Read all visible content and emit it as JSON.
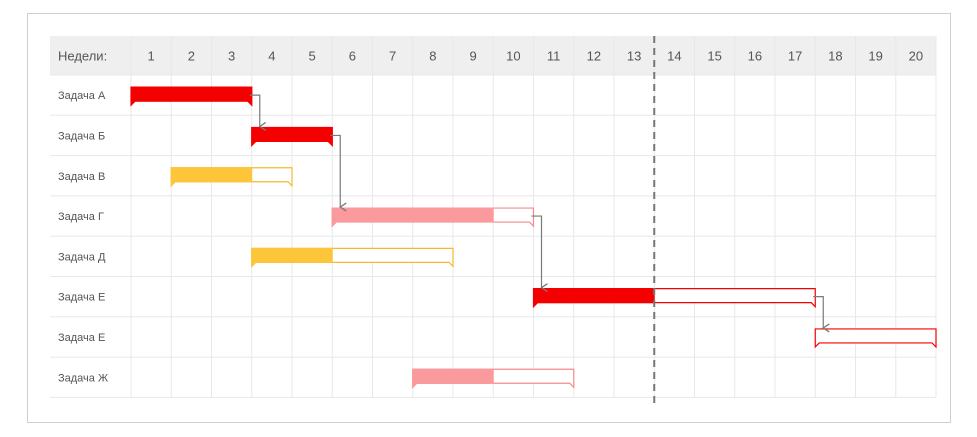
{
  "chart_data": {
    "type": "gantt",
    "header_label": "Недели:",
    "weeks": [
      "1",
      "2",
      "3",
      "4",
      "5",
      "6",
      "7",
      "8",
      "9",
      "10",
      "11",
      "12",
      "13",
      "14",
      "15",
      "16",
      "17",
      "18",
      "19",
      "20"
    ],
    "current_week_marker": 13,
    "colors": {
      "done_red": "#f50000",
      "done_yellow": "#fcc53a",
      "done_pink": "#fb9a9c",
      "outline_red": "#f50000",
      "outline_yellow": "#f7b733",
      "outline_pink": "#f28b8f",
      "arrow": "#7a7a7a",
      "header_bg": "#efefef",
      "grid": "#e8e8e8",
      "marker": "#777777"
    },
    "tasks": [
      {
        "id": "A",
        "label": "Задача А",
        "start": 1,
        "end": 3,
        "done_until": 3,
        "color": "red"
      },
      {
        "id": "B",
        "label": "Задача Б",
        "start": 4,
        "end": 5,
        "done_until": 5,
        "color": "red"
      },
      {
        "id": "V",
        "label": "Задача В",
        "start": 2,
        "end": 4,
        "done_until": 3,
        "color": "yellow"
      },
      {
        "id": "G",
        "label": "Задача Г",
        "start": 6,
        "end": 10,
        "done_until": 9,
        "color": "pink"
      },
      {
        "id": "D",
        "label": "Задача Д",
        "start": 4,
        "end": 8,
        "done_until": 5,
        "color": "yellow"
      },
      {
        "id": "E1",
        "label": "Задача Е",
        "start": 11,
        "end": 17,
        "done_until": 13,
        "color": "red"
      },
      {
        "id": "E2",
        "label": "Задача Е",
        "start": 18,
        "end": 20,
        "done_until": 17,
        "color": "red"
      },
      {
        "id": "ZH",
        "label": "Задача Ж",
        "start": 8,
        "end": 11,
        "done_until": 9,
        "color": "pink"
      }
    ],
    "dependencies": [
      {
        "from": "A",
        "to": "B"
      },
      {
        "from": "B",
        "to": "G"
      },
      {
        "from": "G",
        "to": "E1"
      },
      {
        "from": "E1",
        "to": "E2"
      }
    ]
  }
}
